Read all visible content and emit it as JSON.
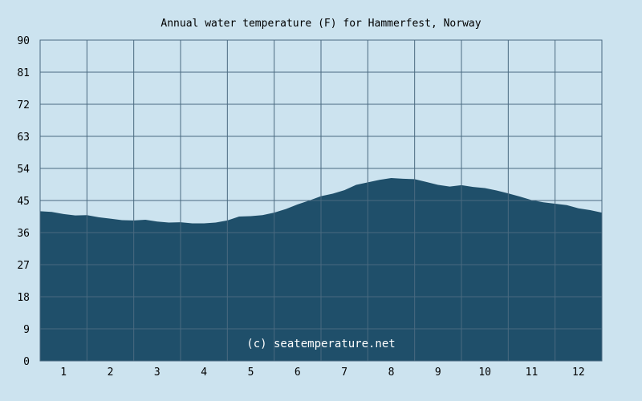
{
  "colors": {
    "background": "#cce3ef",
    "plot_background": "#cce3ef",
    "area_fill": "#1f4f6a",
    "grid": "#4a6a80",
    "text": "#000000",
    "watermark": "#ffffff"
  },
  "chart_data": {
    "type": "area",
    "title": "Annual water temperature (F) for Hammerfest, Norway",
    "xlabel": "",
    "ylabel": "",
    "ylim": [
      0,
      90
    ],
    "yticks": [
      0,
      9,
      18,
      27,
      36,
      45,
      54,
      63,
      72,
      81,
      90
    ],
    "yticklabels": [
      "0",
      "9",
      "18",
      "27",
      "36",
      "45",
      "54",
      "63",
      "72",
      "81",
      "90"
    ],
    "xlim": [
      0.5,
      12.5
    ],
    "xticks": [
      1,
      2,
      3,
      4,
      5,
      6,
      7,
      8,
      9,
      10,
      11,
      12
    ],
    "xticklabels": [
      "1",
      "2",
      "3",
      "4",
      "5",
      "6",
      "7",
      "8",
      "9",
      "10",
      "11",
      "12"
    ],
    "grid": true,
    "watermark": "(c) seatemperature.net",
    "series": [
      {
        "x": [
          0.5,
          0.75,
          1.0,
          1.25,
          1.5,
          1.75,
          2.0,
          2.25,
          2.5,
          2.75,
          3.0,
          3.25,
          3.5,
          3.75,
          4.0,
          4.25,
          4.5,
          4.75,
          5.0,
          5.25,
          5.5,
          5.75,
          6.0,
          6.25,
          6.5,
          6.75,
          7.0,
          7.25,
          7.5,
          7.75,
          8.0,
          8.25,
          8.5,
          8.75,
          9.0,
          9.25,
          9.5,
          9.75,
          10.0,
          10.25,
          10.5,
          10.75,
          11.0,
          11.25,
          11.5,
          11.75,
          12.0,
          12.25,
          12.5
        ],
        "values": [
          42.0,
          41.8,
          41.2,
          40.8,
          40.9,
          40.3,
          39.9,
          39.5,
          39.4,
          39.6,
          39.1,
          38.8,
          38.9,
          38.6,
          38.6,
          38.8,
          39.4,
          40.5,
          40.6,
          40.9,
          41.6,
          42.6,
          43.9,
          45.0,
          46.2,
          46.9,
          47.9,
          49.4,
          50.1,
          50.8,
          51.3,
          51.1,
          51.0,
          50.2,
          49.4,
          48.9,
          49.3,
          48.8,
          48.5,
          47.8,
          47.0,
          46.1,
          45.1,
          44.5,
          44.1,
          43.7,
          42.8,
          42.3,
          41.6
        ]
      }
    ]
  }
}
